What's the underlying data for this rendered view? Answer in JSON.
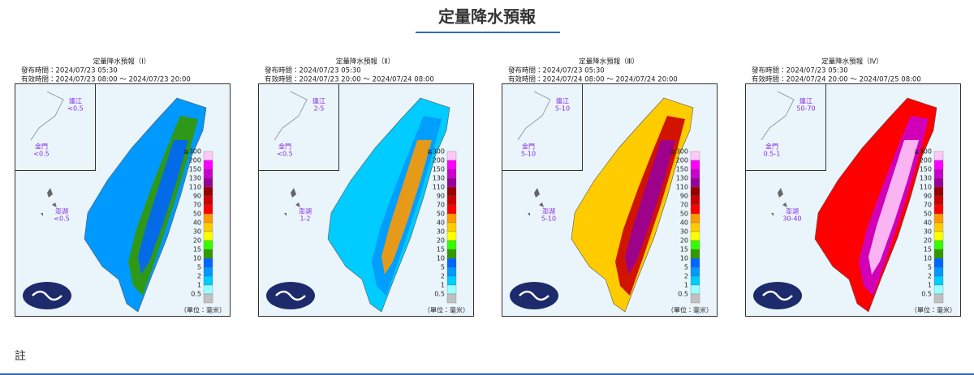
{
  "header": {
    "title": "定量降水預報"
  },
  "legend": {
    "labels": [
      "≧300",
      "200",
      "150",
      "130",
      "110",
      "90",
      "70",
      "50",
      "40",
      "30",
      "20",
      "15",
      "10",
      "5",
      "2",
      "1",
      "0.5"
    ],
    "colors": [
      "#ffc8f8",
      "#ff00ff",
      "#cc00cc",
      "#990099",
      "#990000",
      "#cc0000",
      "#ff0000",
      "#ff9900",
      "#ffcc00",
      "#ffff00",
      "#33ff00",
      "#339900",
      "#0066ff",
      "#0099ff",
      "#00ccff",
      "#99ffff",
      "#c1c1c1"
    ],
    "unit": "（單位：毫米）"
  },
  "islands": {
    "matsu": "連江",
    "kinmen": "金門",
    "penghu": "澎湖"
  },
  "panels": [
    {
      "title": "定量降水預報（Ⅰ）",
      "issued": "發布時間：2024/07/23 05:30",
      "valid": "有效時間：2024/07/23 08:00 ～ 2024/07/23 20:00",
      "matsu": "<0.5",
      "kinmen": "<0.5",
      "penghu": "<0.5"
    },
    {
      "title": "定量降水預報（Ⅱ）",
      "issued": "發布時間：2024/07/23 05:30",
      "valid": "有效時間：2024/07/23 20:00 ～ 2024/07/24 08:00",
      "matsu": "2-5",
      "kinmen": "<0.5",
      "penghu": "1-2"
    },
    {
      "title": "定量降水預報（Ⅲ）",
      "issued": "發布時間：2024/07/23 05:30",
      "valid": "有效時間：2024/07/24 08:00 ～ 2024/07/24 20:00",
      "matsu": "5-10",
      "kinmen": "5-10",
      "penghu": "5-10"
    },
    {
      "title": "定量降水預報（Ⅳ）",
      "issued": "發布時間：2024/07/23 05:30",
      "valid": "有效時間：2024/07/24 20:00 ～ 2024/07/25 08:00",
      "matsu": "50-70",
      "kinmen": "0.5-1",
      "penghu": "30-40"
    }
  ],
  "notes": {
    "heading": "註"
  }
}
